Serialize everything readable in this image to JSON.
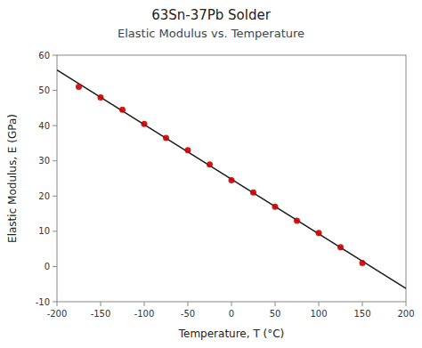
{
  "chart_data": {
    "type": "scatter",
    "title": "63Sn-37Pb Solder",
    "subtitle": "Elastic Modulus vs. Temperature",
    "x_label": "Temperature, T (°C)",
    "y_label": "Elastic Modulus, E (GPa)",
    "xlim": [
      -200,
      200
    ],
    "ylim": [
      -10,
      60
    ],
    "xticks": [
      -200,
      -150,
      -100,
      -50,
      0,
      50,
      100,
      150,
      200
    ],
    "yticks": [
      -10,
      0,
      10,
      20,
      30,
      40,
      50,
      60
    ],
    "grid": false,
    "series": [
      {
        "type": "scatter",
        "marker": "circle",
        "color": "#cc0000",
        "x": [
          -175,
          -150,
          -125,
          -100,
          -75,
          -50,
          -25,
          0,
          25,
          50,
          75,
          100,
          125,
          150
        ],
        "values": [
          51.0,
          48.0,
          44.5,
          40.5,
          36.5,
          33.0,
          29.0,
          24.5,
          21.0,
          17.0,
          13.0,
          9.5,
          5.5,
          1.0
        ]
      },
      {
        "type": "line",
        "line_style": "solid",
        "color": "#1a1a1a",
        "x": [
          -200,
          200
        ],
        "values": [
          55.7747252747,
          -6.2208791209
        ]
      }
    ]
  }
}
